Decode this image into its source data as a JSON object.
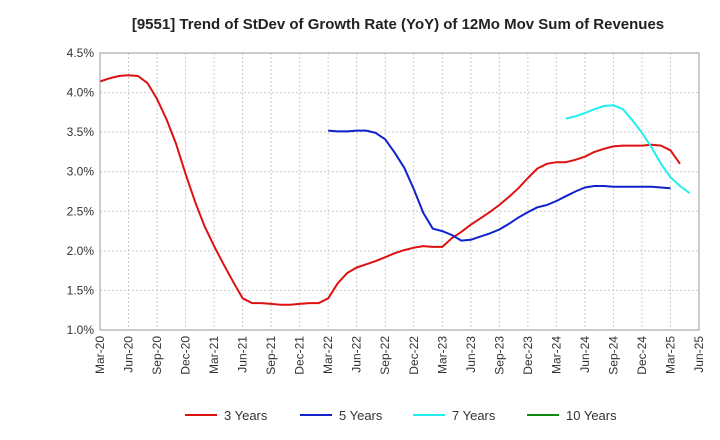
{
  "chart_data": {
    "type": "line",
    "title": "[9551]  Trend of StDev of Growth Rate (YoY) of 12Mo Mov Sum of Revenues",
    "xlabel": "",
    "ylabel": "",
    "ylim": [
      1.0,
      4.5
    ],
    "y_ticks": [
      "1.0%",
      "1.5%",
      "2.0%",
      "2.5%",
      "3.0%",
      "3.5%",
      "4.0%",
      "4.5%"
    ],
    "x_ticks": [
      "Mar-20",
      "Jun-20",
      "Sep-20",
      "Dec-20",
      "Mar-21",
      "Jun-21",
      "Sep-21",
      "Dec-21",
      "Mar-22",
      "Jun-22",
      "Sep-22",
      "Dec-22",
      "Mar-23",
      "Jun-23",
      "Sep-23",
      "Dec-23",
      "Mar-24",
      "Jun-24",
      "Sep-24",
      "Dec-24",
      "Mar-25",
      "Jun-25"
    ],
    "x_range": [
      0,
      63
    ],
    "grid": true,
    "legend_position": "bottom",
    "series": [
      {
        "name": "3 Years",
        "color": "#dd1111",
        "start_index": 0,
        "values": [
          4.14,
          4.18,
          4.21,
          4.22,
          4.21,
          4.12,
          3.92,
          3.66,
          3.35,
          2.97,
          2.62,
          2.31,
          2.06,
          1.83,
          1.61,
          1.4,
          1.34,
          1.34,
          1.33,
          1.32,
          1.32,
          1.33,
          1.34,
          1.34,
          1.4,
          1.59,
          1.72,
          1.79,
          1.83,
          1.87,
          1.92,
          1.97,
          2.01,
          2.04,
          2.06,
          2.05,
          2.05,
          2.16,
          2.24,
          2.33,
          2.41,
          2.49,
          2.58,
          2.68,
          2.79,
          2.92,
          3.04,
          3.1,
          3.12,
          3.12,
          3.15,
          3.19,
          3.25,
          3.29,
          3.32,
          3.33,
          3.33,
          3.33,
          3.34,
          3.33,
          3.27,
          3.1
        ]
      },
      {
        "name": "5 Years",
        "color": "#1122cc",
        "start_index": 24,
        "values": [
          3.52,
          3.51,
          3.51,
          3.52,
          3.52,
          3.49,
          3.41,
          3.24,
          3.05,
          2.78,
          2.48,
          2.28,
          2.25,
          2.2,
          2.13,
          2.14,
          2.18,
          2.22,
          2.27,
          2.34,
          2.42,
          2.49,
          2.55,
          2.58,
          2.63,
          2.69,
          2.75,
          2.8,
          2.82,
          2.82,
          2.81,
          2.81,
          2.81,
          2.81,
          2.81,
          2.8,
          2.79
        ]
      },
      {
        "name": "7 Years",
        "color": "#22eeee",
        "start_index": 49,
        "values": [
          3.67,
          3.7,
          3.74,
          3.79,
          3.83,
          3.84,
          3.79,
          3.65,
          3.49,
          3.31,
          3.1,
          2.93,
          2.82,
          2.73
        ]
      },
      {
        "name": "10 Years",
        "color": "#118811",
        "start_index": 0,
        "values": []
      }
    ]
  }
}
